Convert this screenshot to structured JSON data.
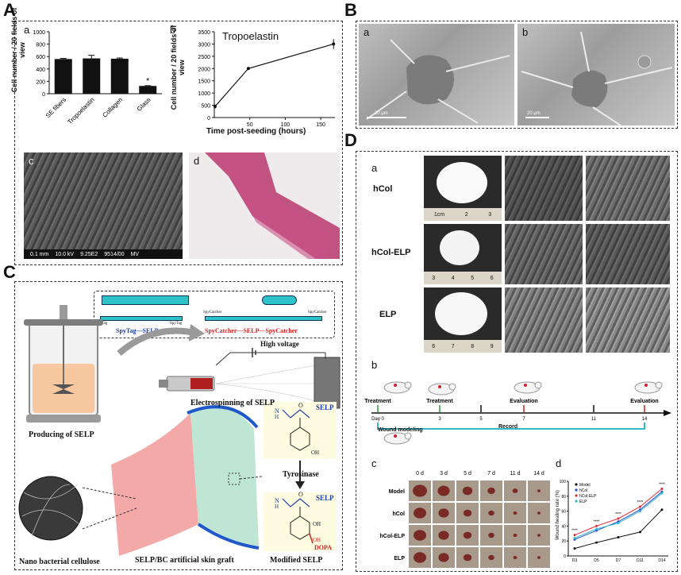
{
  "panels": {
    "A": {
      "letter": "A",
      "a": {
        "label": "a",
        "chart_data": {
          "type": "bar",
          "categories": [
            "SE fibers",
            "Tropoelastin",
            "Collagen",
            "Glass"
          ],
          "values": [
            560,
            570,
            565,
            125
          ],
          "errors": [
            10,
            50,
            12,
            5
          ],
          "annotations": [
            "",
            "",
            "",
            "*"
          ],
          "ylabel": "Cell number / 20 fields of view",
          "ylim": [
            0,
            1000
          ],
          "yticks": [
            "0",
            "200",
            "400",
            "600",
            "800",
            "1000"
          ],
          "color": "#111111"
        }
      },
      "b": {
        "label": "b",
        "chart_data": {
          "type": "line",
          "title": "Tropoelastin",
          "x": [
            1,
            48,
            168
          ],
          "y": [
            450,
            2000,
            3000
          ],
          "errors": [
            80,
            20,
            200
          ],
          "xlabel": "Time post-seeding (hours)",
          "ylabel": "Cell number / 20 fields of view",
          "xlim": [
            0,
            170
          ],
          "ylim": [
            0,
            3500
          ],
          "xticks": [
            "50",
            "100",
            "150"
          ],
          "yticks": [
            "0",
            "500",
            "1000",
            "1500",
            "2000",
            "2500",
            "3000",
            "3500"
          ]
        }
      },
      "c": {
        "label": "c",
        "scalebar": [
          "0.1 mm",
          "10.0 kV",
          "9.25E2",
          "9514/00",
          "MV"
        ]
      },
      "d": {
        "label": "d"
      }
    },
    "B": {
      "letter": "B",
      "a": {
        "label": "a",
        "scale": "20 μm"
      },
      "b": {
        "label": "b",
        "scale": "20 μm"
      }
    },
    "C": {
      "letter": "C",
      "spy_left": {
        "tag_l": "SpyTag",
        "mid": "SpyTag—SELP—SpyTag",
        "tag_r": "SpyTag"
      },
      "spy_right": {
        "tag_l": "SpyCatcher",
        "mid": "SpyCatcher—SELP—SpyCatcher",
        "tag_r": "SpyCatcher"
      },
      "high_voltage": "High voltage",
      "electrospinning": "Electrospinning of SELP",
      "producing": "Producing of SELP",
      "selp_top": "SELP",
      "tyrosinase": "Tyrosinase",
      "selp_bottom": "SELP",
      "dopa": "DOPA",
      "modified": "Modified SELP",
      "nano": "Nano bacterial cellulose",
      "graft": "SELP/BC artificial skin graft",
      "oh": "OH",
      "oh2": "OH",
      "oh3": "OH",
      "chem_n": "N",
      "chem_h": "H",
      "chem_o": "O"
    },
    "D": {
      "letter": "D",
      "a": {
        "label": "a",
        "rows": [
          "hCol",
          "hCol-ELP",
          "ELP"
        ],
        "ruler1": [
          "1cm",
          "2",
          "3"
        ],
        "ruler2": [
          "3",
          "4",
          "5",
          "6"
        ],
        "ruler3": [
          "6",
          "7",
          "8",
          "9"
        ]
      },
      "b": {
        "label": "b",
        "timeline": [
          {
            "top": "Treatment",
            "day": "Day 0"
          },
          {
            "top": "Treatment",
            "day": "3"
          },
          {
            "top": "",
            "day": "5"
          },
          {
            "top": "Evaluation",
            "day": "7"
          },
          {
            "top": "",
            "day": "11"
          },
          {
            "top": "Evaluation",
            "day": "14"
          }
        ],
        "wound": "Wound modeling",
        "record": "Record"
      },
      "c": {
        "label": "c",
        "cols": [
          "0 d",
          "3 d",
          "5 d",
          "7 d",
          "11 d",
          "14 d"
        ],
        "rows": [
          "Model",
          "hCol",
          "hCol-ELP",
          "ELP"
        ]
      },
      "d": {
        "label": "d",
        "chart_data": {
          "type": "line",
          "categories": [
            "D3",
            "D5",
            "D7",
            "D11",
            "D14"
          ],
          "series": [
            {
              "name": "Model",
              "values": [
                10,
                18,
                25,
                32,
                62
              ],
              "color": "#111111"
            },
            {
              "name": "hCol",
              "values": [
                22,
                34,
                46,
                62,
                86
              ],
              "color": "#1f4fc9"
            },
            {
              "name": "hCol-ELP",
              "values": [
                28,
                40,
                50,
                66,
                90
              ],
              "color": "#e0303a"
            },
            {
              "name": "ELP",
              "values": [
                24,
                36,
                44,
                60,
                84
              ],
              "color": "#33b7c9"
            }
          ],
          "ylabel": "Wound healing rate (%)",
          "ylim": [
            0,
            100
          ],
          "yticks": [
            "0",
            "20",
            "40",
            "60",
            "80",
            "100"
          ],
          "sig": [
            "****",
            "****",
            "****",
            "****",
            "****"
          ]
        }
      }
    }
  }
}
